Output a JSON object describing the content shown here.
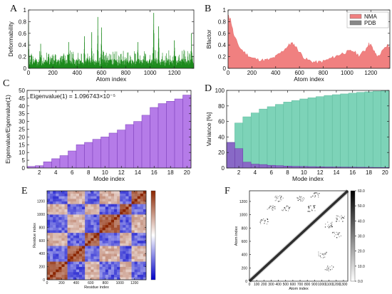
{
  "chart_data": [
    {
      "panel": "A",
      "type": "bar",
      "xlabel": "Atom index",
      "ylabel": "Deformability",
      "xlim": [
        0,
        1360
      ],
      "ylim": [
        0,
        1
      ],
      "xticks": [
        0,
        200,
        400,
        600,
        800,
        1000,
        1200
      ],
      "yticks": [
        0,
        0.2,
        0.4,
        0.6,
        0.8,
        1
      ],
      "ytick_labels": [
        "0",
        "0.2",
        "0.4",
        "0.6",
        "0.8",
        "1"
      ],
      "color": "#1c8a1c",
      "n_points": 1360,
      "peaks": [
        {
          "x": 0,
          "y": 0.78
        },
        {
          "x": 100,
          "y": 0.42
        },
        {
          "x": 330,
          "y": 0.45
        },
        {
          "x": 460,
          "y": 0.55
        },
        {
          "x": 520,
          "y": 0.62
        },
        {
          "x": 570,
          "y": 0.88
        },
        {
          "x": 600,
          "y": 0.7
        },
        {
          "x": 900,
          "y": 0.45
        },
        {
          "x": 1030,
          "y": 0.95
        },
        {
          "x": 1070,
          "y": 0.72
        },
        {
          "x": 1200,
          "y": 0.48
        },
        {
          "x": 1340,
          "y": 0.6
        }
      ]
    },
    {
      "panel": "B",
      "type": "area",
      "xlabel": "Atom index",
      "ylabel": "Bfactor",
      "xlim": [
        0,
        1360
      ],
      "ylim": [
        0,
        1
      ],
      "xticks": [
        0,
        200,
        400,
        600,
        800,
        1000,
        1200
      ],
      "yticks": [
        0,
        0.2,
        0.4,
        0.6,
        0.8,
        1
      ],
      "ytick_labels": [
        "0",
        "0.2",
        "0.4",
        "0.6",
        "0.8",
        "1"
      ],
      "legend": "top-right",
      "series": [
        {
          "name": "NMA",
          "color": "#f08080",
          "x": [
            0,
            20,
            50,
            100,
            150,
            200,
            250,
            300,
            350,
            400,
            450,
            500,
            530,
            560,
            600,
            650,
            700,
            750,
            800,
            850,
            900,
            950,
            1000,
            1050,
            1100,
            1150,
            1180,
            1200,
            1230,
            1260,
            1300,
            1340,
            1360
          ],
          "y": [
            0.9,
            0.85,
            0.55,
            0.35,
            0.25,
            0.18,
            0.15,
            0.14,
            0.15,
            0.2,
            0.28,
            0.38,
            0.43,
            0.4,
            0.28,
            0.16,
            0.12,
            0.1,
            0.12,
            0.16,
            0.2,
            0.25,
            0.28,
            0.3,
            0.22,
            0.3,
            0.42,
            0.4,
            0.28,
            0.2,
            0.3,
            0.4,
            0.35
          ]
        },
        {
          "name": "PDB",
          "color": "#888888",
          "x": [
            0,
            1360
          ],
          "y": [
            0,
            0
          ]
        }
      ]
    },
    {
      "panel": "C",
      "type": "bar",
      "xlabel": "Mode index",
      "ylabel": "Eigenvalue/Eigenvalue(1)",
      "annotation": "Eigenvalue(1) = 1.096743×10⁻⁵",
      "xlim": [
        0.5,
        20.5
      ],
      "ylim": [
        0,
        50
      ],
      "xticks": [
        2,
        4,
        6,
        8,
        10,
        12,
        14,
        16,
        18,
        20
      ],
      "yticks": [
        0,
        5,
        10,
        15,
        20,
        25,
        30,
        35,
        40,
        45,
        50
      ],
      "color": "#b57be8",
      "categories": [
        1,
        2,
        3,
        4,
        5,
        6,
        7,
        8,
        9,
        10,
        11,
        12,
        13,
        14,
        15,
        16,
        17,
        18,
        19,
        20
      ],
      "values": [
        1,
        1.5,
        4,
        6,
        8,
        11,
        15,
        16.5,
        18.5,
        20,
        22.5,
        24.5,
        28,
        30,
        34,
        39,
        41.5,
        43,
        44.5,
        47
      ]
    },
    {
      "panel": "D",
      "type": "bar",
      "xlabel": "Mode index",
      "ylabel": "Variance [%]",
      "xlim": [
        0.5,
        20.5
      ],
      "ylim": [
        0,
        100
      ],
      "xticks": [
        2,
        4,
        6,
        8,
        10,
        12,
        14,
        16,
        18,
        20
      ],
      "yticks": [
        0,
        20,
        40,
        60,
        80,
        100
      ],
      "categories": [
        1,
        2,
        3,
        4,
        5,
        6,
        7,
        8,
        9,
        10,
        11,
        12,
        13,
        14,
        15,
        16,
        17,
        18,
        19,
        20
      ],
      "series": [
        {
          "color": "#7dd3b8",
          "values": [
            33,
            58,
            66,
            71,
            76,
            79,
            82,
            85,
            87,
            89,
            90.5,
            92,
            93.5,
            94.5,
            95.5,
            96.5,
            97.5,
            98.2,
            99,
            99.6
          ]
        },
        {
          "color": "#8a56c8",
          "values": [
            33,
            25,
            7.5,
            5,
            4.5,
            3.5,
            3,
            2.5,
            2.2,
            2,
            1.8,
            1.6,
            1.4,
            1.3,
            1.2,
            1.1,
            1,
            0.9,
            0.8,
            0.7
          ]
        }
      ]
    },
    {
      "panel": "E",
      "type": "heatmap",
      "xlabel": "Residue index",
      "ylabel": "Residue index",
      "xlim": [
        0,
        1360
      ],
      "ylim": [
        0,
        1360
      ],
      "xticks": [
        0,
        200,
        400,
        600,
        800,
        1000,
        1200
      ],
      "yticks": [
        0,
        200,
        400,
        600,
        800,
        1000,
        1200
      ],
      "colorscale": [
        "#0000c8",
        "#ffffff",
        "#8b2500"
      ]
    },
    {
      "panel": "F",
      "type": "heatmap",
      "xlabel": "Atom index",
      "ylabel": "Atom index",
      "xlim": [
        0,
        1360
      ],
      "ylim": [
        0,
        1360
      ],
      "xticks": [
        0,
        100,
        200,
        300,
        400,
        500,
        600,
        700,
        800,
        900,
        1000,
        1100,
        1200,
        1300
      ],
      "yticks": [
        0,
        200,
        400,
        600,
        800,
        1000,
        1200
      ],
      "colorbar_ticks": [
        0.0,
        10.0,
        20.0,
        30.0,
        40.0,
        50.0,
        60.0
      ],
      "colorbar_labels": [
        "0.0",
        "10.0",
        "20.0",
        "30.0",
        "40.0",
        "50.0",
        "60.0"
      ],
      "colorscale": [
        "#ffffff",
        "#000000"
      ]
    }
  ]
}
